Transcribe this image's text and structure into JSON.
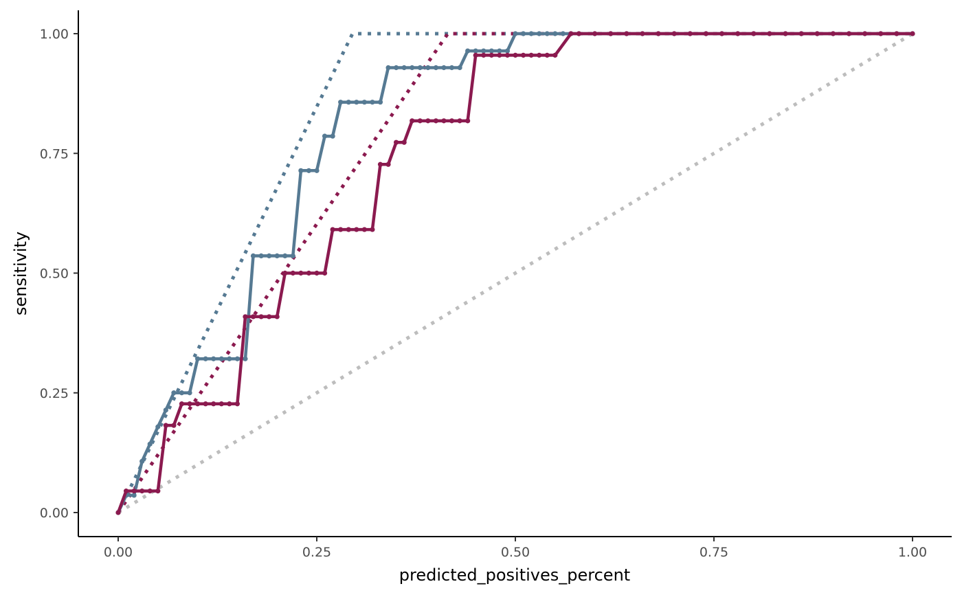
{
  "chart_data": {
    "type": "line",
    "xlabel": "predicted_positives_percent",
    "ylabel": "sensitivity",
    "xlim": [
      -0.05,
      1.05
    ],
    "ylim": [
      -0.05,
      1.05
    ],
    "x_ticks": [
      0,
      0.25,
      0.5,
      0.75,
      1
    ],
    "x_tick_labels": [
      "0.00",
      "0.25",
      "0.50",
      "0.75",
      "1.00"
    ],
    "y_ticks": [
      0,
      0.25,
      0.5,
      0.75,
      1
    ],
    "y_tick_labels": [
      "0.00",
      "0.25",
      "0.50",
      "0.75",
      "1.00"
    ],
    "grid": false,
    "legend": "none",
    "series": [
      {
        "color": "#567a93",
        "style": "solid-with-points",
        "points": [
          [
            0,
            0
          ],
          [
            0.01,
            0.036
          ],
          [
            0.02,
            0.036
          ],
          [
            0.03,
            0.107
          ],
          [
            0.04,
            0.143
          ],
          [
            0.05,
            0.179
          ],
          [
            0.06,
            0.214
          ],
          [
            0.07,
            0.25
          ],
          [
            0.08,
            0.25
          ],
          [
            0.09,
            0.25
          ],
          [
            0.1,
            0.321
          ],
          [
            0.11,
            0.321
          ],
          [
            0.12,
            0.321
          ],
          [
            0.13,
            0.321
          ],
          [
            0.14,
            0.321
          ],
          [
            0.15,
            0.321
          ],
          [
            0.16,
            0.321
          ],
          [
            0.17,
            0.536
          ],
          [
            0.18,
            0.536
          ],
          [
            0.19,
            0.536
          ],
          [
            0.2,
            0.536
          ],
          [
            0.21,
            0.536
          ],
          [
            0.22,
            0.536
          ],
          [
            0.23,
            0.714
          ],
          [
            0.24,
            0.714
          ],
          [
            0.25,
            0.714
          ],
          [
            0.26,
            0.786
          ],
          [
            0.27,
            0.786
          ],
          [
            0.28,
            0.857
          ],
          [
            0.29,
            0.857
          ],
          [
            0.3,
            0.857
          ],
          [
            0.31,
            0.857
          ],
          [
            0.32,
            0.857
          ],
          [
            0.33,
            0.857
          ],
          [
            0.34,
            0.929
          ],
          [
            0.35,
            0.929
          ],
          [
            0.36,
            0.929
          ],
          [
            0.37,
            0.929
          ],
          [
            0.38,
            0.929
          ],
          [
            0.39,
            0.929
          ],
          [
            0.4,
            0.929
          ],
          [
            0.41,
            0.929
          ],
          [
            0.42,
            0.929
          ],
          [
            0.43,
            0.929
          ],
          [
            0.44,
            0.964
          ],
          [
            0.45,
            0.964
          ],
          [
            0.46,
            0.964
          ],
          [
            0.47,
            0.964
          ],
          [
            0.48,
            0.964
          ],
          [
            0.49,
            0.964
          ],
          [
            0.5,
            1
          ],
          [
            0.51,
            1
          ],
          [
            0.52,
            1
          ],
          [
            0.53,
            1
          ],
          [
            0.54,
            1
          ],
          [
            0.55,
            1
          ],
          [
            0.56,
            1
          ],
          [
            0.57,
            1
          ],
          [
            0.58,
            1
          ],
          [
            0.6,
            1
          ],
          [
            0.62,
            1
          ],
          [
            0.64,
            1
          ],
          [
            0.66,
            1
          ],
          [
            0.68,
            1
          ],
          [
            0.7,
            1
          ],
          [
            0.72,
            1
          ],
          [
            0.74,
            1
          ],
          [
            0.76,
            1
          ],
          [
            0.78,
            1
          ],
          [
            0.8,
            1
          ],
          [
            0.82,
            1
          ],
          [
            0.84,
            1
          ],
          [
            0.86,
            1
          ],
          [
            0.88,
            1
          ],
          [
            0.9,
            1
          ],
          [
            0.92,
            1
          ],
          [
            0.94,
            1
          ],
          [
            0.96,
            1
          ],
          [
            0.98,
            1
          ],
          [
            1,
            1
          ]
        ]
      },
      {
        "color": "#8b1a4f",
        "style": "solid-with-points",
        "points": [
          [
            0,
            0
          ],
          [
            0.01,
            0.045
          ],
          [
            0.02,
            0.045
          ],
          [
            0.03,
            0.045
          ],
          [
            0.04,
            0.045
          ],
          [
            0.05,
            0.045
          ],
          [
            0.06,
            0.182
          ],
          [
            0.07,
            0.182
          ],
          [
            0.08,
            0.227
          ],
          [
            0.09,
            0.227
          ],
          [
            0.1,
            0.227
          ],
          [
            0.11,
            0.227
          ],
          [
            0.12,
            0.227
          ],
          [
            0.13,
            0.227
          ],
          [
            0.14,
            0.227
          ],
          [
            0.15,
            0.227
          ],
          [
            0.16,
            0.409
          ],
          [
            0.17,
            0.409
          ],
          [
            0.18,
            0.409
          ],
          [
            0.19,
            0.409
          ],
          [
            0.2,
            0.409
          ],
          [
            0.21,
            0.5
          ],
          [
            0.22,
            0.5
          ],
          [
            0.23,
            0.5
          ],
          [
            0.24,
            0.5
          ],
          [
            0.25,
            0.5
          ],
          [
            0.26,
            0.5
          ],
          [
            0.27,
            0.591
          ],
          [
            0.28,
            0.591
          ],
          [
            0.29,
            0.591
          ],
          [
            0.3,
            0.591
          ],
          [
            0.31,
            0.591
          ],
          [
            0.32,
            0.591
          ],
          [
            0.33,
            0.727
          ],
          [
            0.34,
            0.727
          ],
          [
            0.35,
            0.773
          ],
          [
            0.36,
            0.773
          ],
          [
            0.37,
            0.818
          ],
          [
            0.38,
            0.818
          ],
          [
            0.39,
            0.818
          ],
          [
            0.4,
            0.818
          ],
          [
            0.41,
            0.818
          ],
          [
            0.42,
            0.818
          ],
          [
            0.43,
            0.818
          ],
          [
            0.44,
            0.818
          ],
          [
            0.45,
            0.955
          ],
          [
            0.46,
            0.955
          ],
          [
            0.47,
            0.955
          ],
          [
            0.48,
            0.955
          ],
          [
            0.49,
            0.955
          ],
          [
            0.5,
            0.955
          ],
          [
            0.51,
            0.955
          ],
          [
            0.52,
            0.955
          ],
          [
            0.53,
            0.955
          ],
          [
            0.54,
            0.955
          ],
          [
            0.55,
            0.955
          ],
          [
            0.57,
            1
          ],
          [
            0.58,
            1
          ],
          [
            0.6,
            1
          ],
          [
            0.62,
            1
          ],
          [
            0.64,
            1
          ],
          [
            0.66,
            1
          ],
          [
            0.68,
            1
          ],
          [
            0.7,
            1
          ],
          [
            0.72,
            1
          ],
          [
            0.74,
            1
          ],
          [
            0.76,
            1
          ],
          [
            0.78,
            1
          ],
          [
            0.8,
            1
          ],
          [
            0.82,
            1
          ],
          [
            0.84,
            1
          ],
          [
            0.86,
            1
          ],
          [
            0.88,
            1
          ],
          [
            0.9,
            1
          ],
          [
            0.92,
            1
          ],
          [
            0.94,
            1
          ],
          [
            0.96,
            1
          ],
          [
            0.98,
            1
          ],
          [
            1,
            1
          ]
        ]
      },
      {
        "color": "#567a93",
        "style": "dotted",
        "points": [
          [
            0,
            0
          ],
          [
            0.295,
            1
          ],
          [
            1,
            1
          ]
        ]
      },
      {
        "color": "#8b1a4f",
        "style": "dotted",
        "points": [
          [
            0,
            0
          ],
          [
            0.415,
            1
          ],
          [
            1,
            1
          ]
        ]
      },
      {
        "color": "#bdbdbd",
        "style": "dotted",
        "points": [
          [
            0,
            0
          ],
          [
            1,
            1
          ]
        ]
      }
    ]
  }
}
